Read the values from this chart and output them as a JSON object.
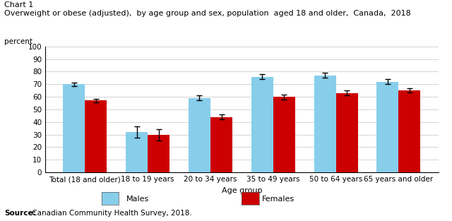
{
  "title_line1": "Chart 1",
  "title_line2": "Overweight or obese (adjusted),  by age group and sex, population  aged 18 and older,  Canada,  2018",
  "ylabel": "percent",
  "xlabel": "Age group",
  "categories": [
    "Total (18 and older)",
    "18 to 19 years",
    "20 to 34 years",
    "35 to 49 years",
    "50 to 64 years",
    "65 years and older"
  ],
  "males": [
    70,
    32,
    59,
    76,
    77,
    72
  ],
  "females": [
    57,
    30,
    44,
    60,
    63,
    65
  ],
  "males_err": [
    1.5,
    4.5,
    2.0,
    2.0,
    2.0,
    2.0
  ],
  "females_err": [
    1.5,
    4.5,
    2.0,
    2.0,
    2.0,
    1.5
  ],
  "male_color": "#87CEEB",
  "female_color": "#CC0000",
  "ylim": [
    0,
    100
  ],
  "yticks": [
    0,
    10,
    20,
    30,
    40,
    50,
    60,
    70,
    80,
    90,
    100
  ],
  "source_bold": "Source:",
  "source_rest": " Canadian Community Health Survey, 2018.",
  "legend_males": "Males",
  "legend_females": "Females",
  "bar_width": 0.35,
  "error_capsize": 3,
  "error_color": "black",
  "error_linewidth": 1.0,
  "background_color": "#ffffff",
  "grid_color": "#cccccc"
}
